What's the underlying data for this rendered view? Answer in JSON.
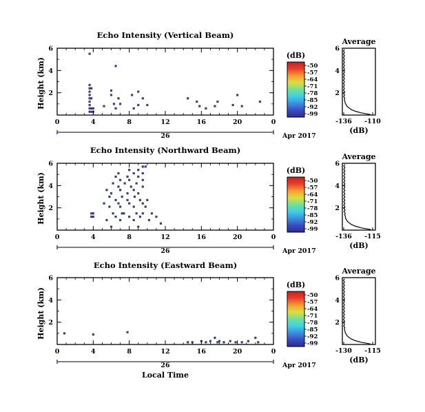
{
  "colorbar": {
    "unit": "(dB)",
    "ticks": [
      "-50",
      "-57",
      "-64",
      "-71",
      "-78",
      "-85",
      "-92",
      "-99"
    ],
    "colors": [
      "#2d2a8c",
      "#3b4cc0",
      "#3f8fe0",
      "#3fd0e8",
      "#6ee0a0",
      "#d8e040",
      "#f4a030",
      "#e8402a",
      "#c81e1e"
    ]
  },
  "shared": {
    "x_ticks": [
      "0",
      "4",
      "8",
      "12",
      "16",
      "20",
      "0"
    ],
    "y_ticks": [
      "6",
      "4",
      "2"
    ],
    "ylabel": "Height (km)",
    "date_day": "26",
    "date_label": "Apr 2017",
    "xlabel": "Local Time",
    "point_color": "#3d4175"
  },
  "chart_data": [
    {
      "type": "heatmap",
      "title": "Echo Intensity (Vertical Beam)",
      "xlim": [
        0,
        24
      ],
      "ylim": [
        0,
        6
      ],
      "points": [
        [
          3.6,
          5.5
        ],
        [
          6.5,
          4.4
        ],
        [
          3.6,
          2.7
        ],
        [
          3.6,
          2.4
        ],
        [
          3.6,
          2.1
        ],
        [
          3.6,
          1.8
        ],
        [
          3.6,
          1.5
        ],
        [
          3.6,
          1.2
        ],
        [
          3.6,
          0.9
        ],
        [
          3.6,
          0.6
        ],
        [
          3.6,
          0.3
        ],
        [
          3.8,
          2.4
        ],
        [
          3.8,
          1.5
        ],
        [
          3.8,
          0.6
        ],
        [
          3.8,
          0.3
        ],
        [
          4.0,
          0.6
        ],
        [
          4.0,
          0.3
        ],
        [
          5.2,
          0.8
        ],
        [
          6.0,
          2.2
        ],
        [
          6.0,
          1.8
        ],
        [
          6.3,
          1.0
        ],
        [
          6.5,
          0.6
        ],
        [
          6.8,
          1.5
        ],
        [
          7.0,
          1.0
        ],
        [
          8.3,
          1.8
        ],
        [
          8.5,
          0.6
        ],
        [
          9.0,
          2.1
        ],
        [
          9.0,
          0.9
        ],
        [
          9.5,
          1.5
        ],
        [
          10.0,
          0.9
        ],
        [
          14.5,
          1.5
        ],
        [
          15.5,
          1.2
        ],
        [
          15.8,
          0.8
        ],
        [
          16.5,
          0.6
        ],
        [
          17.5,
          0.8
        ],
        [
          17.8,
          1.2
        ],
        [
          19.5,
          0.9
        ],
        [
          20.0,
          1.8
        ],
        [
          20.5,
          0.8
        ],
        [
          22.5,
          1.2
        ]
      ],
      "profile": {
        "title": "Average",
        "xlabel": "(dB)",
        "x_ticks": [
          "-136",
          "-110"
        ],
        "xlim": [
          -136,
          -110
        ],
        "y_ticks": [
          "6",
          "4",
          "2"
        ],
        "ylim": [
          0,
          6
        ]
      }
    },
    {
      "type": "heatmap",
      "title": "Echo Intensity (Northward Beam)",
      "xlim": [
        0,
        24
      ],
      "ylim": [
        0,
        6
      ],
      "points": [
        [
          9.5,
          5.7
        ],
        [
          9.8,
          5.7
        ],
        [
          8.0,
          5.4
        ],
        [
          9.0,
          5.4
        ],
        [
          6.8,
          5.1
        ],
        [
          8.5,
          5.1
        ],
        [
          9.5,
          5.1
        ],
        [
          6.5,
          4.8
        ],
        [
          7.8,
          4.8
        ],
        [
          9.0,
          4.8
        ],
        [
          7.0,
          4.5
        ],
        [
          8.0,
          4.5
        ],
        [
          9.5,
          4.5
        ],
        [
          6.2,
          4.2
        ],
        [
          7.5,
          4.2
        ],
        [
          8.8,
          4.2
        ],
        [
          6.8,
          3.9
        ],
        [
          8.2,
          3.9
        ],
        [
          9.5,
          3.9
        ],
        [
          5.5,
          3.6
        ],
        [
          7.0,
          3.6
        ],
        [
          8.5,
          3.6
        ],
        [
          6.0,
          3.3
        ],
        [
          7.8,
          3.3
        ],
        [
          9.0,
          3.3
        ],
        [
          5.8,
          3.0
        ],
        [
          7.2,
          3.0
        ],
        [
          8.6,
          3.0
        ],
        [
          6.5,
          2.7
        ],
        [
          7.8,
          2.7
        ],
        [
          9.2,
          2.7
        ],
        [
          10.0,
          2.7
        ],
        [
          5.2,
          2.4
        ],
        [
          6.8,
          2.4
        ],
        [
          8.0,
          2.4
        ],
        [
          9.5,
          2.4
        ],
        [
          5.8,
          2.1
        ],
        [
          7.0,
          2.1
        ],
        [
          8.5,
          2.1
        ],
        [
          9.8,
          2.1
        ],
        [
          3.8,
          1.5
        ],
        [
          4.0,
          1.5
        ],
        [
          3.8,
          1.2
        ],
        [
          4.0,
          1.2
        ],
        [
          6.2,
          1.5
        ],
        [
          7.2,
          1.5
        ],
        [
          7.4,
          1.5
        ],
        [
          8.8,
          1.5
        ],
        [
          9.5,
          1.5
        ],
        [
          10.5,
          1.5
        ],
        [
          6.5,
          1.2
        ],
        [
          8.0,
          1.2
        ],
        [
          9.2,
          1.2
        ],
        [
          11.0,
          1.2
        ],
        [
          5.5,
          0.9
        ],
        [
          7.0,
          0.9
        ],
        [
          8.5,
          0.9
        ],
        [
          10.2,
          0.9
        ],
        [
          11.5,
          0.6
        ],
        [
          6.0,
          0.3
        ],
        [
          9.0,
          0.3
        ]
      ],
      "profile": {
        "title": "Average",
        "xlabel": "(dB)",
        "x_ticks": [
          "-136",
          "-115"
        ],
        "xlim": [
          -136,
          -115
        ],
        "y_ticks": [
          "6",
          "4",
          "2"
        ],
        "ylim": [
          0,
          6
        ]
      }
    },
    {
      "type": "heatmap",
      "title": "Echo Intensity (Eastward Beam)",
      "xlim": [
        0,
        24
      ],
      "ylim": [
        0,
        6
      ],
      "points": [
        [
          0.8,
          1.0
        ],
        [
          4.0,
          0.9
        ],
        [
          7.8,
          1.1
        ],
        [
          14.5,
          0.2
        ],
        [
          15.0,
          0.2
        ],
        [
          16.0,
          0.3
        ],
        [
          16.5,
          0.2
        ],
        [
          17.0,
          0.3
        ],
        [
          17.5,
          0.6
        ],
        [
          17.8,
          0.2
        ],
        [
          18.0,
          0.3
        ],
        [
          18.5,
          0.2
        ],
        [
          19.2,
          0.3
        ],
        [
          19.8,
          0.2
        ],
        [
          20.5,
          0.2
        ],
        [
          21.2,
          0.3
        ],
        [
          22.0,
          0.6
        ],
        [
          22.3,
          0.2
        ]
      ],
      "profile": {
        "title": "Average",
        "xlabel": "(dB)",
        "x_ticks": [
          "-130",
          "-115"
        ],
        "xlim": [
          -136,
          -110
        ],
        "y_ticks": [
          "6",
          "4",
          "2"
        ],
        "ylim": [
          0,
          6
        ]
      }
    }
  ]
}
